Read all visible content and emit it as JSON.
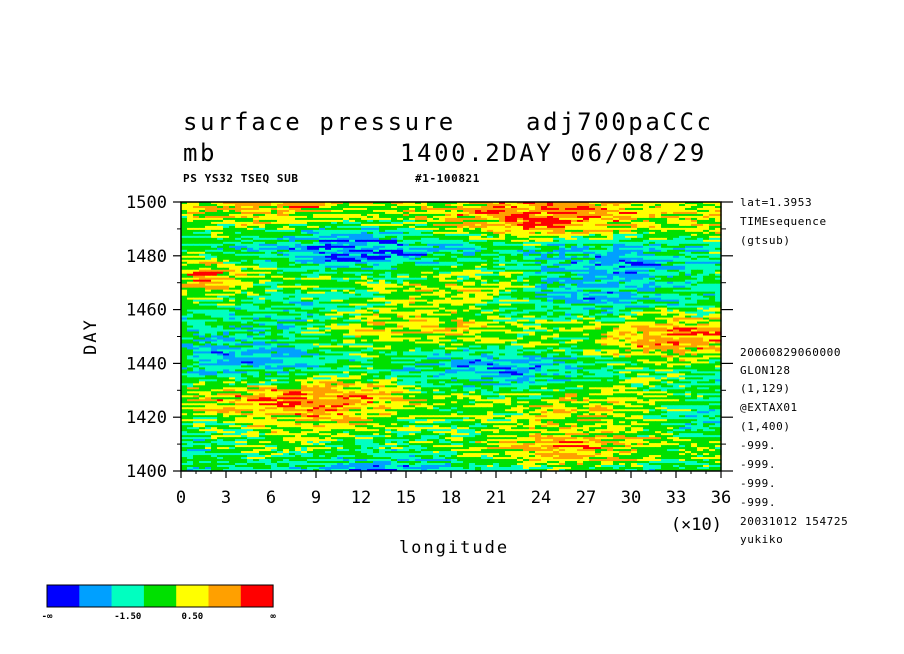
{
  "header": {
    "title_left": "surface pressure",
    "title_right": "adj700paCCc",
    "units": "mb",
    "subtitle_right": "1400.2DAY 06/08/29",
    "tag_left": "PS YS32 TSEQ SUB",
    "tag_right": "#1-100821"
  },
  "side_info": {
    "top": [
      "lat=1.3953",
      "TIMEsequence",
      "(gtsub)"
    ],
    "bottom": [
      "20060829060000",
      "GLON128",
      "(1,129)",
      "@EXTAX01",
      "(1,400)",
      "-999.",
      "-999.",
      "-999.",
      "-999.",
      "20031012 154725",
      "yukiko"
    ]
  },
  "colorbar": {
    "colors": [
      "#0000ff",
      "#00a0ff",
      "#00ffc0",
      "#00e000",
      "#ffff00",
      "#ffa000",
      "#ff0000"
    ],
    "labels": [
      "-∞",
      "-1.50",
      "0.50",
      "∞"
    ]
  },
  "chart_data": {
    "type": "heatmap",
    "title": "surface pressure",
    "xlabel": "longitude",
    "ylabel": "DAY",
    "xlim": [
      0,
      36
    ],
    "ylim": [
      1400,
      1500
    ],
    "x_scale_label": "(×10)",
    "xticks": [
      0,
      3,
      6,
      9,
      12,
      15,
      18,
      21,
      24,
      27,
      30,
      33,
      36
    ],
    "yticks": [
      1400,
      1420,
      1440,
      1460,
      1480,
      1500
    ],
    "levels": [
      -1.5,
      0.5
    ]
  }
}
